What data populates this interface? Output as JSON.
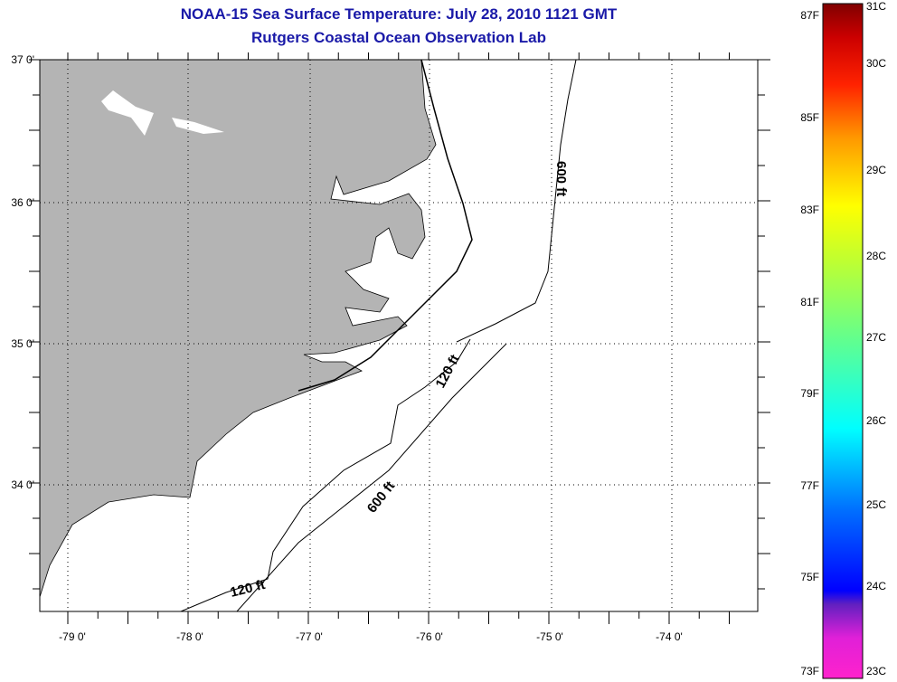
{
  "title": "NOAA-15 Sea Surface Temperature:  July 28, 2010 1121 GMT",
  "subtitle": "Rutgers Coastal Ocean Observation Lab",
  "map": {
    "lat_labels": [
      {
        "value": 37,
        "label": "37 0'"
      },
      {
        "value": 36,
        "label": "36 0'"
      },
      {
        "value": 35,
        "label": "35 0'"
      },
      {
        "value": 34,
        "label": "34 0'"
      }
    ],
    "lon_labels": [
      {
        "value": -79,
        "label": "-79 0'"
      },
      {
        "value": -78,
        "label": "-78 0'"
      },
      {
        "value": -77,
        "label": "-77 0'"
      },
      {
        "value": -76,
        "label": "-76 0'"
      },
      {
        "value": -75,
        "label": "-75 0'"
      },
      {
        "value": -74,
        "label": "-74 0'"
      }
    ],
    "lon_range": [
      -79.23,
      -73.3
    ],
    "lat_range": [
      33.22,
      37
    ],
    "contour_labels": [
      "600 ft",
      "120 ft",
      "600 ft",
      "120 ft"
    ],
    "land_color": "#b4b4b4"
  },
  "colorbar": {
    "fahrenheit": [
      "87F",
      "85F",
      "83F",
      "81F",
      "79F",
      "77F",
      "75F",
      "73F"
    ],
    "celsius": [
      "31C",
      "30C",
      "29C",
      "28C",
      "27C",
      "26C",
      "25C",
      "24C",
      "23C"
    ],
    "range_c": [
      23,
      31
    ]
  }
}
